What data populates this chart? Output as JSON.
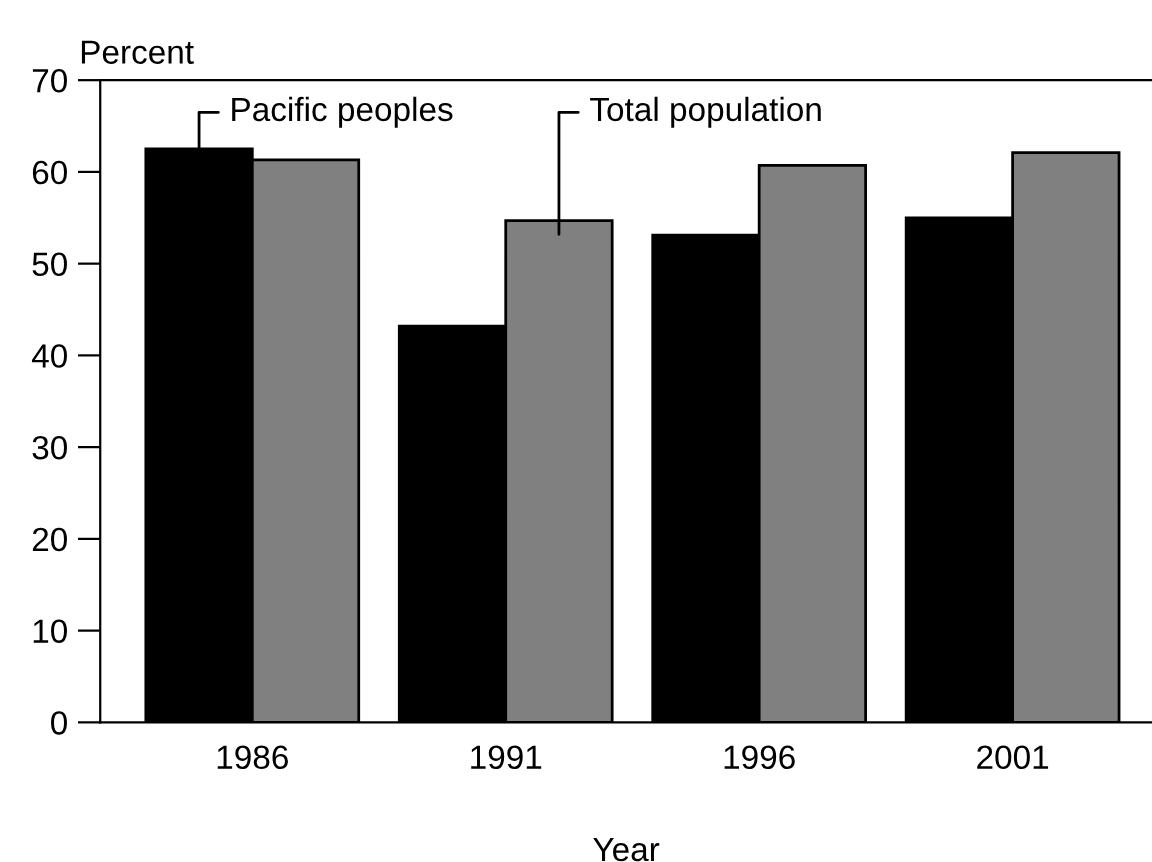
{
  "chart_data": {
    "type": "bar",
    "categories": [
      "1986",
      "1991",
      "1996",
      "2001"
    ],
    "series": [
      {
        "name": "Pacific peoples",
        "color": "#000000",
        "values": [
          62.5,
          43.2,
          53.1,
          55.0
        ]
      },
      {
        "name": "Total population",
        "color": "#808080",
        "values": [
          61.3,
          54.7,
          60.7,
          62.1
        ]
      }
    ],
    "ylabel": "Percent",
    "xlabel": "Year",
    "ylim": [
      0,
      70
    ],
    "yticks": [
      0,
      10,
      20,
      30,
      40,
      50,
      60,
      70
    ],
    "grid": false,
    "legend": "top"
  }
}
